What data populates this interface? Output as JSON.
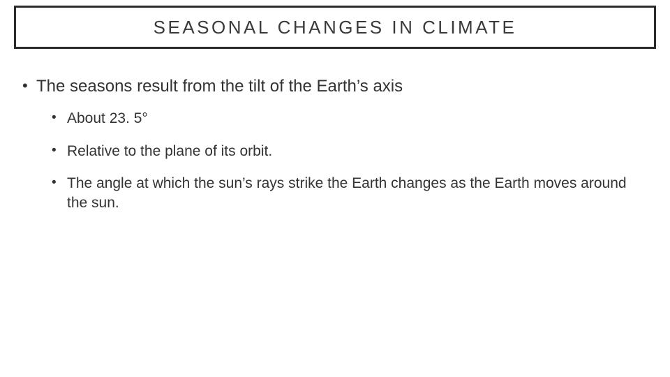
{
  "slide": {
    "title": "SEASONAL CHANGES IN CLIMATE",
    "title_fontsize": 26,
    "title_letter_spacing": 3.5,
    "title_border_color": "#2b2b2b",
    "title_border_width": 3,
    "background_color": "#ffffff",
    "text_color": "#333333",
    "bullets": {
      "main": "The seasons result from the tilt of the Earth’s axis",
      "sub": [
        "About 23. 5°",
        "Relative to the plane of its orbit.",
        "The angle at which the sun’s rays strike the Earth changes as the Earth moves around the sun."
      ]
    },
    "lvl1_fontsize": 24,
    "lvl2_fontsize": 21
  }
}
